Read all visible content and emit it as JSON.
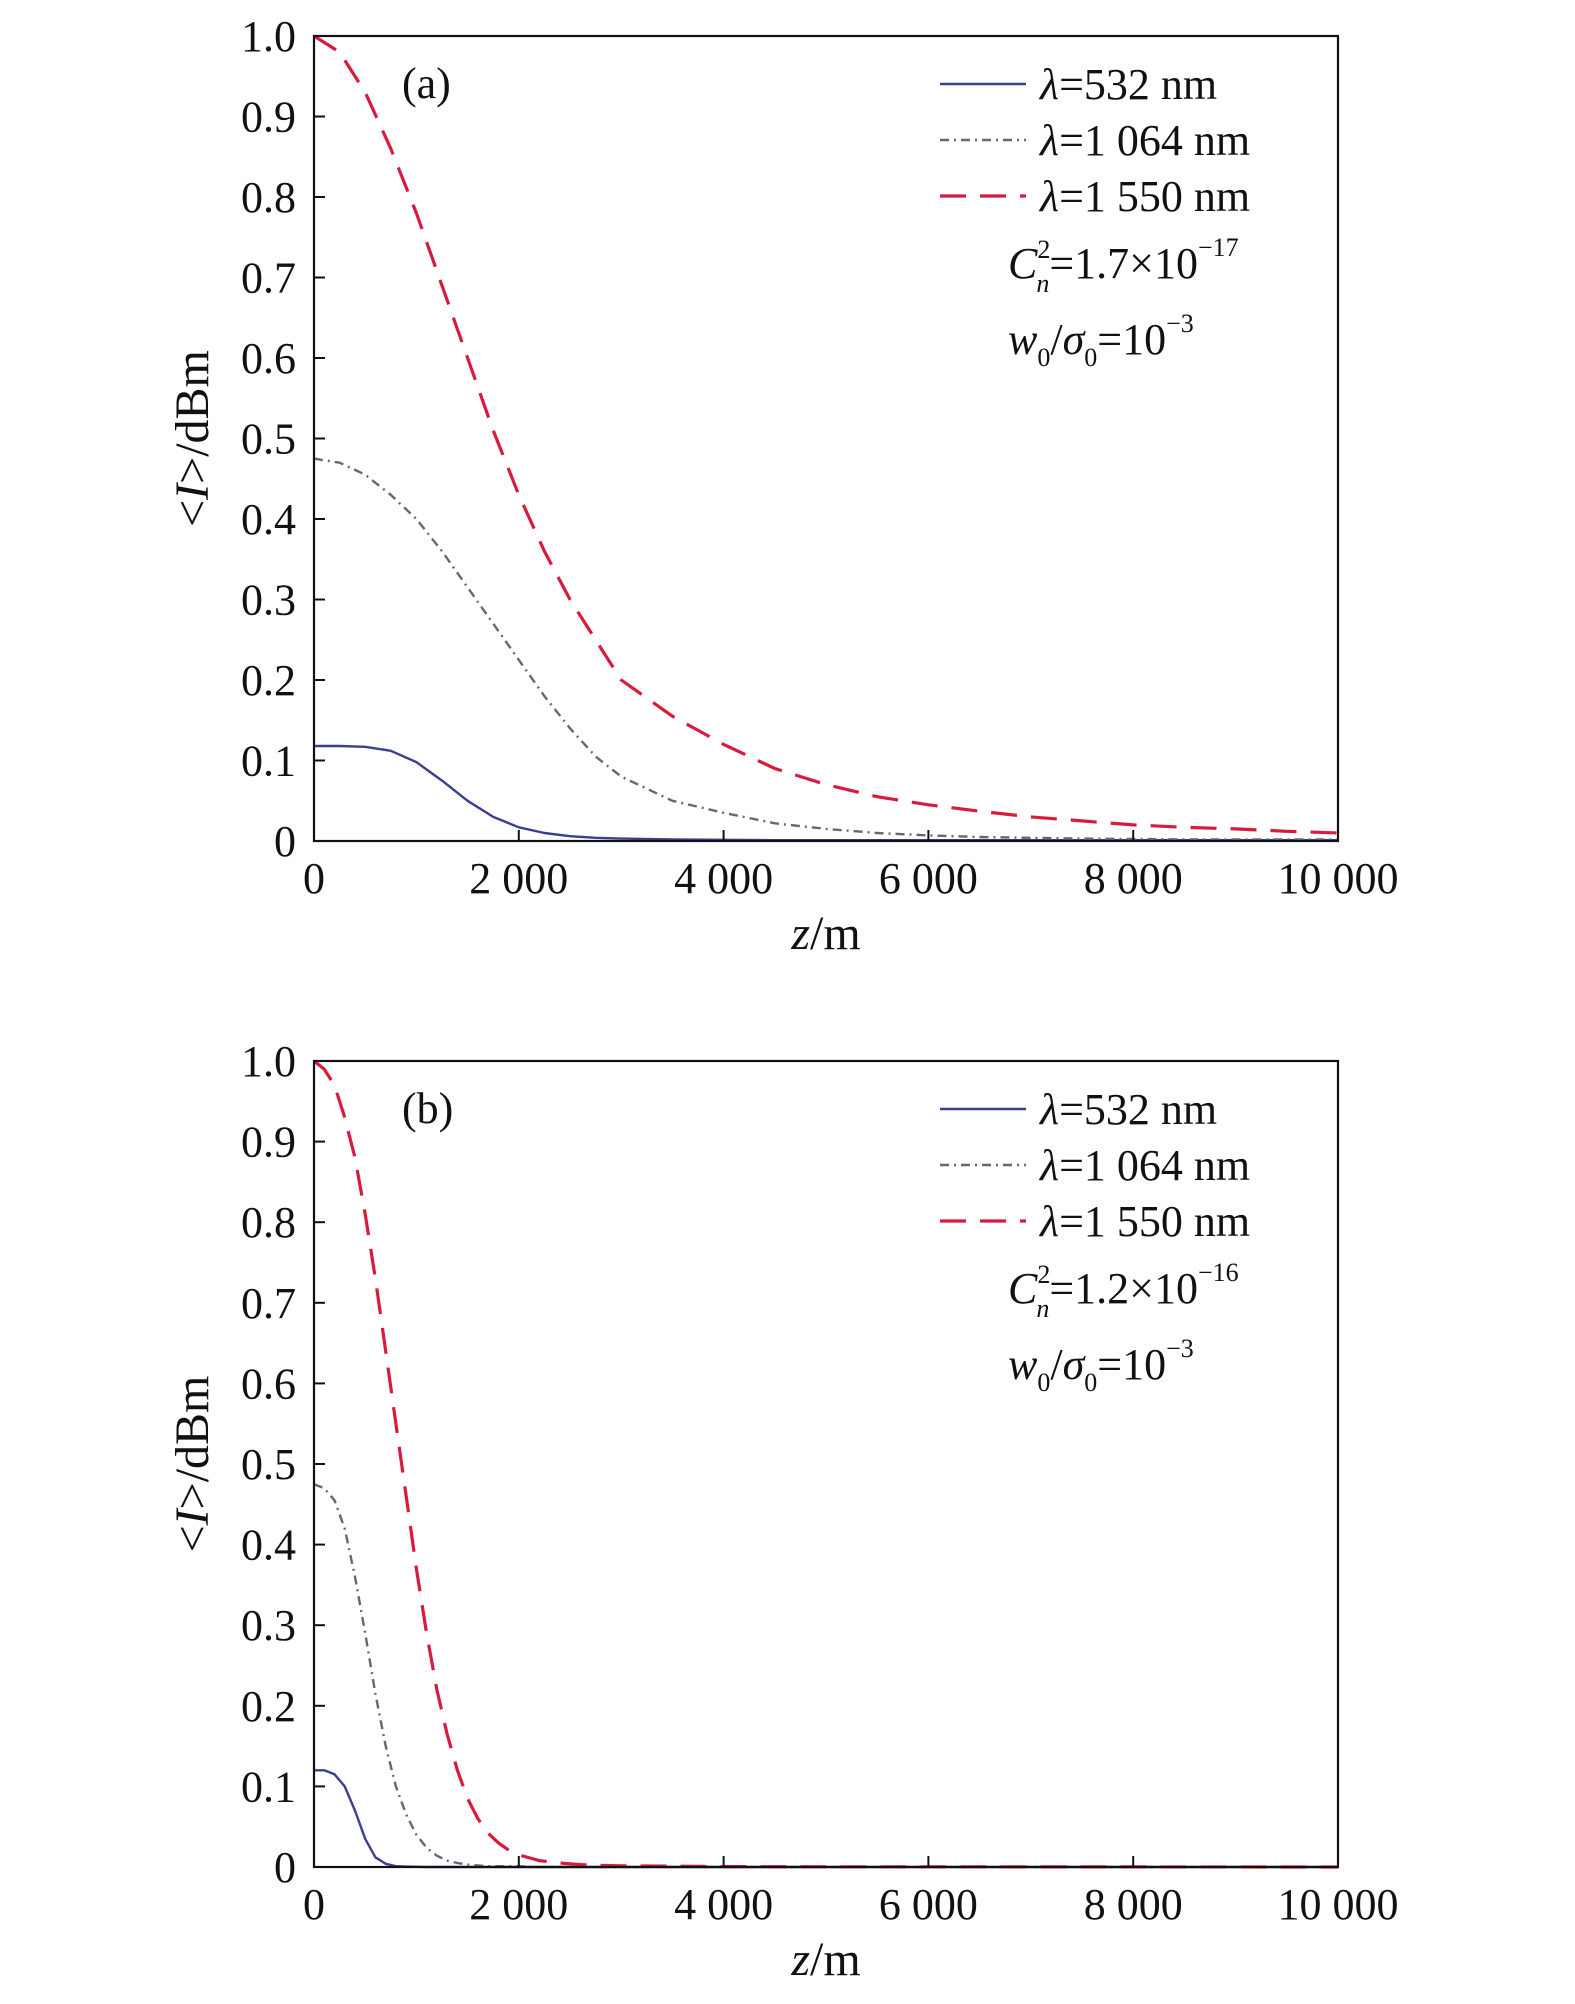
{
  "chart_data": [
    {
      "type": "line",
      "panel_label": "(a)",
      "xlabel": {
        "var": "z",
        "unit": "/m"
      },
      "ylabel": {
        "lt": "<",
        "var": "I",
        "rest": ">/dBm"
      },
      "xlim": [
        0,
        10000
      ],
      "ylim": [
        0,
        1.0
      ],
      "xticks": [
        0,
        2000,
        4000,
        6000,
        8000,
        10000
      ],
      "xtick_labels": [
        "0",
        "2 000",
        "4 000",
        "6 000",
        "8 000",
        "10 000"
      ],
      "yticks": [
        0,
        0.1,
        0.2,
        0.3,
        0.4,
        0.5,
        0.6,
        0.7,
        0.8,
        0.9,
        1.0
      ],
      "ytick_labels": [
        "0",
        "0.1",
        "0.2",
        "0.3",
        "0.4",
        "0.5",
        "0.6",
        "0.7",
        "0.8",
        "0.9",
        "1.0"
      ],
      "grid": false,
      "legend_position": "top-right",
      "parameters": {
        "cn2": {
          "symbol": "C",
          "sup": "2",
          "sub": "n",
          "eq": "=1.7×10",
          "exp": "−17"
        },
        "ratio": {
          "w": "w",
          "w_sub": "0",
          "slash": "/",
          "sigma": "σ",
          "sigma_sub": "0",
          "eq": "=10",
          "exp": "−3"
        }
      },
      "x": [
        0,
        250,
        500,
        750,
        1000,
        1250,
        1500,
        1750,
        2000,
        2250,
        2500,
        2750,
        3000,
        3500,
        4000,
        4500,
        5000,
        5500,
        6000,
        6500,
        7000,
        7500,
        8000,
        8500,
        9000,
        9500,
        10000
      ],
      "series": [
        {
          "name": "λ=532 nm",
          "lambda": "λ",
          "rest": "=532 nm",
          "color": "#3a3f8f",
          "dash": "solid",
          "values": [
            0.118,
            0.118,
            0.117,
            0.112,
            0.098,
            0.075,
            0.05,
            0.03,
            0.017,
            0.01,
            0.006,
            0.004,
            0.003,
            0.002,
            0.0015,
            0.001,
            0.001,
            0.001,
            0.001,
            0.001,
            0.001,
            0.001,
            0.001,
            0.001,
            0.001,
            0.001,
            0.001
          ]
        },
        {
          "name": "λ=1 064 nm",
          "lambda": "λ",
          "rest": "=1 064 nm",
          "color": "#666677",
          "dash": "dashdot",
          "values": [
            0.475,
            0.47,
            0.455,
            0.43,
            0.4,
            0.36,
            0.315,
            0.27,
            0.225,
            0.18,
            0.14,
            0.105,
            0.08,
            0.05,
            0.035,
            0.022,
            0.015,
            0.01,
            0.007,
            0.005,
            0.004,
            0.003,
            0.0025,
            0.002,
            0.002,
            0.002,
            0.002
          ]
        },
        {
          "name": "λ=1 550 nm",
          "lambda": "λ",
          "rest": "=1 550 nm",
          "color": "#d81b3c",
          "dash": "dashed",
          "values": [
            1.0,
            0.98,
            0.93,
            0.86,
            0.78,
            0.69,
            0.6,
            0.51,
            0.43,
            0.36,
            0.3,
            0.25,
            0.2,
            0.155,
            0.12,
            0.09,
            0.07,
            0.055,
            0.045,
            0.037,
            0.03,
            0.025,
            0.02,
            0.017,
            0.015,
            0.012,
            0.01
          ]
        }
      ]
    },
    {
      "type": "line",
      "panel_label": "(b)",
      "xlabel": {
        "var": "z",
        "unit": "/m"
      },
      "ylabel": {
        "lt": "<",
        "var": "I",
        "rest": ">/dBm"
      },
      "xlim": [
        0,
        10000
      ],
      "ylim": [
        0,
        1.0
      ],
      "xticks": [
        0,
        2000,
        4000,
        6000,
        8000,
        10000
      ],
      "xtick_labels": [
        "0",
        "2 000",
        "4 000",
        "6 000",
        "8 000",
        "10 000"
      ],
      "yticks": [
        0,
        0.1,
        0.2,
        0.3,
        0.4,
        0.5,
        0.6,
        0.7,
        0.8,
        0.9,
        1.0
      ],
      "ytick_labels": [
        "0",
        "0.1",
        "0.2",
        "0.3",
        "0.4",
        "0.5",
        "0.6",
        "0.7",
        "0.8",
        "0.9",
        "1.0"
      ],
      "grid": false,
      "legend_position": "top-right",
      "parameters": {
        "cn2": {
          "symbol": "C",
          "sup": "2",
          "sub": "n",
          "eq": "=1.2×10",
          "exp": "−16"
        },
        "ratio": {
          "w": "w",
          "w_sub": "0",
          "slash": "/",
          "sigma": "σ",
          "sigma_sub": "0",
          "eq": "=10",
          "exp": "−3"
        }
      },
      "x": [
        0,
        100,
        200,
        300,
        400,
        500,
        600,
        700,
        800,
        900,
        1000,
        1100,
        1200,
        1300,
        1400,
        1500,
        1600,
        1700,
        1800,
        1900,
        2000,
        2200,
        2400,
        2600,
        2800,
        3000,
        3500,
        4000,
        5000,
        6000,
        8000,
        10000
      ],
      "series": [
        {
          "name": "λ=532 nm",
          "lambda": "λ",
          "rest": "=532 nm",
          "color": "#3a3f8f",
          "dash": "solid",
          "values": [
            0.12,
            0.12,
            0.115,
            0.1,
            0.07,
            0.035,
            0.012,
            0.004,
            0.001,
            0.0005,
            0.0002,
            0,
            0,
            0,
            0,
            0,
            0,
            0,
            0,
            0,
            0,
            0,
            0,
            0,
            0,
            0,
            0,
            0,
            0,
            0,
            0,
            0
          ]
        },
        {
          "name": "λ=1 064 nm",
          "lambda": "λ",
          "rest": "=1 064 nm",
          "color": "#666677",
          "dash": "dashdot",
          "values": [
            0.475,
            0.47,
            0.455,
            0.42,
            0.36,
            0.29,
            0.215,
            0.15,
            0.1,
            0.065,
            0.04,
            0.024,
            0.014,
            0.008,
            0.005,
            0.003,
            0.002,
            0.001,
            0.001,
            0.001,
            0.001,
            0,
            0,
            0,
            0,
            0,
            0,
            0,
            0,
            0,
            0,
            0
          ]
        },
        {
          "name": "λ=1 550 nm",
          "lambda": "λ",
          "rest": "=1 550 nm",
          "color": "#d81b3c",
          "dash": "dashed",
          "values": [
            1.0,
            0.99,
            0.97,
            0.93,
            0.88,
            0.81,
            0.73,
            0.64,
            0.55,
            0.46,
            0.37,
            0.29,
            0.22,
            0.165,
            0.12,
            0.085,
            0.06,
            0.042,
            0.03,
            0.021,
            0.015,
            0.008,
            0.005,
            0.003,
            0.002,
            0.0015,
            0.001,
            0.0005,
            0.0003,
            0.0002,
            0.0001,
            0
          ]
        }
      ]
    }
  ]
}
